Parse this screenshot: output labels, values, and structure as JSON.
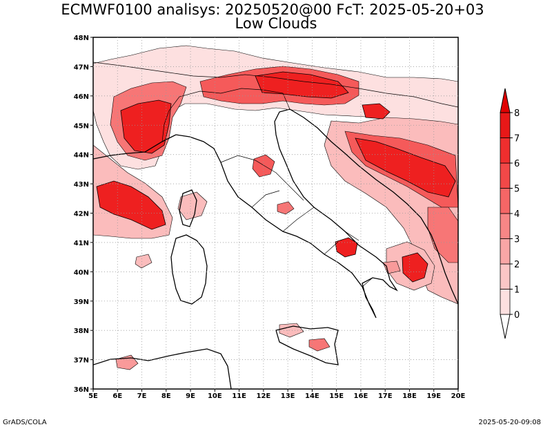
{
  "title": {
    "line1": "ECMWF0100 analisys: 20250520@00 FcT: 2025-05-20+03",
    "line2": "Low Clouds"
  },
  "footer": {
    "left": "GrADS/COLA",
    "right": "2025-05-20-09:08"
  },
  "map": {
    "lon_range": [
      5,
      20
    ],
    "lat_range": [
      36,
      48
    ],
    "lon_labels": [
      "5E",
      "6E",
      "7E",
      "8E",
      "9E",
      "10E",
      "11E",
      "12E",
      "13E",
      "14E",
      "15E",
      "16E",
      "17E",
      "18E",
      "19E",
      "20E"
    ],
    "lat_labels": [
      "36N",
      "37N",
      "38N",
      "39N",
      "40N",
      "41N",
      "42N",
      "43N",
      "44N",
      "45N",
      "46N",
      "47N",
      "48N"
    ],
    "grid": true,
    "colors": {
      "level_1": "#fde0e0",
      "level_2": "#fbbcbc",
      "level_3": "#f99a9a",
      "level_4": "#f77676",
      "level_5": "#f55a5a",
      "level_6": "#f23c3c",
      "level_7": "#ee2020",
      "level_8": "#cc0000",
      "contour": "#000000"
    }
  },
  "colorbar": {
    "labels": [
      "0",
      "1",
      "2",
      "3",
      "4",
      "5",
      "6",
      "7",
      "8"
    ],
    "colors": [
      "#fde0e0",
      "#fbc6c6",
      "#f9a6a6",
      "#f78686",
      "#f56666",
      "#f24848",
      "#ef2e2e",
      "#e81818",
      "#e00000"
    ]
  }
}
